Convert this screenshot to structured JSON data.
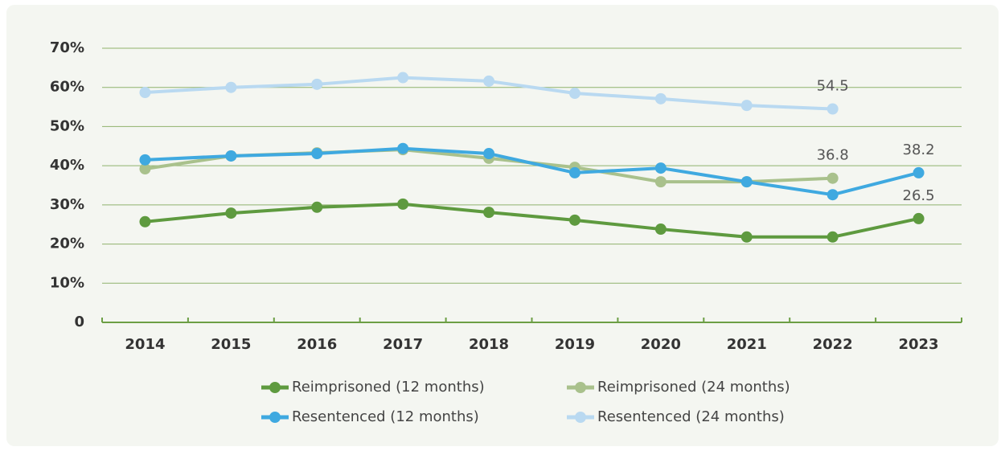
{
  "chart_data": {
    "type": "line",
    "categories": [
      "2014",
      "2015",
      "2016",
      "2017",
      "2018",
      "2019",
      "2020",
      "2021",
      "2022",
      "2023"
    ],
    "series": [
      {
        "name": "Reimprisoned (12 months)",
        "color": "#5e9a3f",
        "values": [
          25.7,
          27.9,
          29.4,
          30.2,
          28.1,
          26.1,
          23.8,
          21.8,
          21.8,
          26.5
        ]
      },
      {
        "name": "Reimprisoned (24 months)",
        "color": "#a9c18c",
        "values": [
          39.2,
          42.5,
          43.3,
          44.1,
          41.9,
          39.6,
          35.9,
          35.9,
          36.8,
          null
        ]
      },
      {
        "name": "Resentenced (12 months)",
        "color": "#3fa9e0",
        "values": [
          41.5,
          42.5,
          43.1,
          44.4,
          43.1,
          38.2,
          39.4,
          35.9,
          32.6,
          38.2
        ]
      },
      {
        "name": "Resentenced (24 months)",
        "color": "#b9d9f1",
        "values": [
          58.7,
          60.0,
          60.8,
          62.5,
          61.6,
          58.5,
          57.1,
          55.4,
          54.5,
          null
        ]
      }
    ],
    "ylim": [
      0,
      70
    ],
    "yticks": [
      0,
      {
        "value": 10,
        "label": "10%"
      },
      {
        "value": 20,
        "label": "20%"
      },
      {
        "value": 30,
        "label": "30%"
      },
      {
        "value": 40,
        "label": "40%"
      },
      {
        "value": 50,
        "label": "50%"
      },
      {
        "value": 60,
        "label": "60%"
      },
      {
        "value": 70,
        "label": "70%"
      }
    ],
    "grid": true,
    "label_last_point": true,
    "legend": "bottom"
  }
}
